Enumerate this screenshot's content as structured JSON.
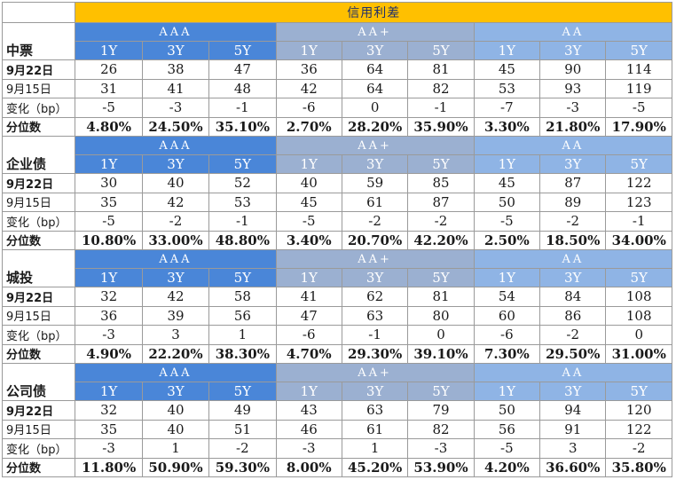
{
  "title": "信用利差",
  "grades": [
    "AAA",
    "AA+",
    "AA"
  ],
  "tenors": [
    "1Y",
    "3Y",
    "5Y"
  ],
  "sections": [
    {
      "name": "中票",
      "rows": [
        {
          "label": "9月22日",
          "values": [
            "26",
            "38",
            "47",
            "36",
            "64",
            "81",
            "45",
            "90",
            "114"
          ]
        },
        {
          "label": "9月15日",
          "values": [
            "31",
            "41",
            "48",
            "42",
            "64",
            "82",
            "53",
            "93",
            "119"
          ]
        },
        {
          "label": "变化（bp）",
          "values": [
            "-5",
            "-3",
            "-1",
            "-6",
            "0",
            "-1",
            "-7",
            "-3",
            "-5"
          ]
        },
        {
          "label": "分位数",
          "values": [
            "4.80%",
            "24.50%",
            "35.10%",
            "2.70%",
            "28.20%",
            "35.90%",
            "3.30%",
            "21.80%",
            "17.90%"
          ]
        }
      ]
    },
    {
      "name": "企业债",
      "rows": [
        {
          "label": "9月22日",
          "values": [
            "30",
            "40",
            "52",
            "40",
            "59",
            "85",
            "45",
            "87",
            "122"
          ]
        },
        {
          "label": "9月15日",
          "values": [
            "35",
            "42",
            "53",
            "45",
            "61",
            "87",
            "50",
            "89",
            "123"
          ]
        },
        {
          "label": "变化（bp）",
          "values": [
            "-5",
            "-2",
            "-1",
            "-5",
            "-2",
            "-2",
            "-5",
            "-2",
            "-1"
          ]
        },
        {
          "label": "分位数",
          "values": [
            "10.80%",
            "33.00%",
            "48.80%",
            "3.40%",
            "20.70%",
            "42.20%",
            "2.50%",
            "18.50%",
            "34.00%"
          ]
        }
      ]
    },
    {
      "name": "城投",
      "rows": [
        {
          "label": "9月22日",
          "values": [
            "32",
            "42",
            "58",
            "41",
            "62",
            "81",
            "54",
            "84",
            "108"
          ]
        },
        {
          "label": "9月15日",
          "values": [
            "36",
            "39",
            "56",
            "47",
            "63",
            "80",
            "60",
            "86",
            "108"
          ]
        },
        {
          "label": "变化（bp）",
          "values": [
            "-3",
            "3",
            "1",
            "-6",
            "-1",
            "0",
            "-6",
            "-2",
            "0"
          ]
        },
        {
          "label": "分位数",
          "values": [
            "4.90%",
            "22.20%",
            "38.30%",
            "4.70%",
            "29.30%",
            "39.10%",
            "7.30%",
            "29.50%",
            "31.00%"
          ]
        }
      ]
    },
    {
      "name": "公司债",
      "rows": [
        {
          "label": "9月22日",
          "values": [
            "32",
            "40",
            "49",
            "43",
            "63",
            "79",
            "50",
            "94",
            "120"
          ]
        },
        {
          "label": "9月15日",
          "values": [
            "35",
            "40",
            "51",
            "46",
            "61",
            "82",
            "56",
            "91",
            "122"
          ]
        },
        {
          "label": "变化（bp）",
          "values": [
            "-3",
            "1",
            "-2",
            "-3",
            "1",
            "-3",
            "-5",
            "3",
            "-2"
          ]
        },
        {
          "label": "分位数",
          "values": [
            "11.80%",
            "50.90%",
            "59.30%",
            "8.00%",
            "45.20%",
            "53.90%",
            "4.20%",
            "36.60%",
            "35.80%"
          ]
        }
      ]
    }
  ],
  "colors": {
    "title_bg": "#ffc000",
    "aaa_header": "#4a86d8",
    "aaplus_header": "#9bb0d1",
    "aa_header": "#8fb4e5"
  }
}
